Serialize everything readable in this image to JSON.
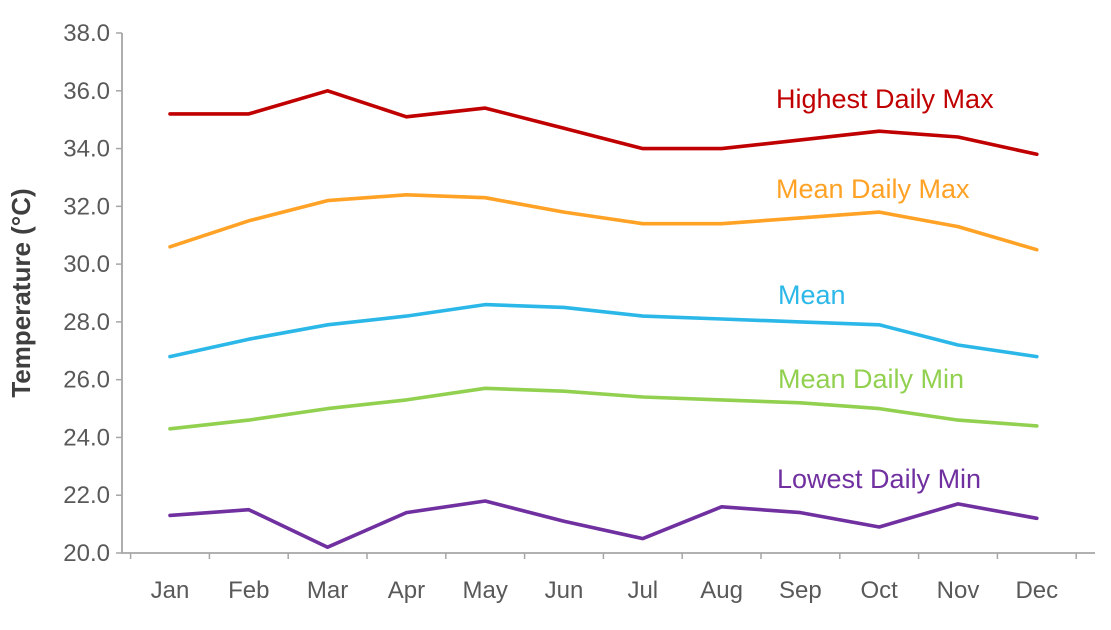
{
  "chart_data": {
    "type": "line",
    "title": "",
    "xlabel": "",
    "ylabel": "Temperature (°C)",
    "ylim": [
      20.0,
      38.0
    ],
    "ytick_step": 2.0,
    "yticks": [
      "20.0",
      "22.0",
      "24.0",
      "26.0",
      "28.0",
      "30.0",
      "32.0",
      "34.0",
      "36.0",
      "38.0"
    ],
    "categories": [
      "Jan",
      "Feb",
      "Mar",
      "Apr",
      "May",
      "Jun",
      "Jul",
      "Aug",
      "Sep",
      "Oct",
      "Nov",
      "Dec"
    ],
    "grid": false,
    "legend_position": "inline-labels",
    "axis_color": "#a6a6a6",
    "tick_label_color": "#595959",
    "series": [
      {
        "name": "Highest Daily Max",
        "color": "#c00000",
        "values": [
          35.2,
          35.2,
          36.0,
          35.1,
          35.4,
          34.7,
          34.0,
          34.0,
          34.3,
          34.6,
          34.4,
          33.8
        ]
      },
      {
        "name": "Mean Daily Max",
        "color": "#ffa226",
        "values": [
          30.6,
          31.5,
          32.2,
          32.4,
          32.3,
          31.8,
          31.4,
          31.4,
          31.6,
          31.8,
          31.3,
          30.5
        ]
      },
      {
        "name": "Mean",
        "color": "#2bb8e8",
        "values": [
          26.8,
          27.4,
          27.9,
          28.2,
          28.6,
          28.5,
          28.2,
          28.1,
          28.0,
          27.9,
          27.2,
          26.8
        ]
      },
      {
        "name": "Mean Daily Min",
        "color": "#92d050",
        "values": [
          24.3,
          24.6,
          25.0,
          25.3,
          25.7,
          25.6,
          25.4,
          25.3,
          25.2,
          25.0,
          24.6,
          24.4
        ]
      },
      {
        "name": "Lowest Daily Min",
        "color": "#7030a0",
        "values": [
          21.3,
          21.5,
          20.2,
          21.4,
          21.8,
          21.1,
          20.5,
          21.6,
          21.4,
          20.9,
          21.7,
          21.2
        ]
      }
    ]
  }
}
